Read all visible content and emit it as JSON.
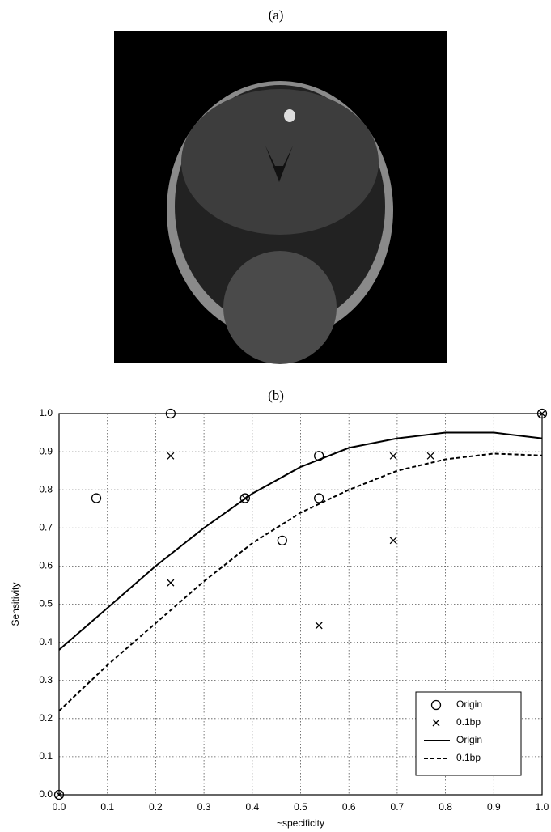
{
  "image_panel": {
    "label": "(a)"
  },
  "chart_data": {
    "type": "scatter",
    "title": "(b)",
    "x_label": "~specificity",
    "y_label": "Sensitivity",
    "xlim": [
      0,
      1
    ],
    "ylim": [
      0,
      1
    ],
    "xticks": [
      {
        "value": 0,
        "label": "0.0"
      },
      0.1,
      0.2,
      0.3,
      0.4,
      0.5,
      0.6,
      0.7,
      0.8,
      0.9,
      {
        "value": 1,
        "label": "1.0"
      }
    ],
    "yticks": [
      {
        "value": 0,
        "label": "0.0"
      },
      0.1,
      0.2,
      0.3,
      0.4,
      0.5,
      0.6,
      0.7,
      0.8,
      0.9,
      {
        "value": 1,
        "label": "1.0"
      }
    ],
    "grid": true,
    "legend": "lower right",
    "series": [
      {
        "name": "Origin",
        "kind": "marker",
        "marker": "circle",
        "color": "#000000",
        "x": [
          0,
          0.077,
          0.231,
          0.385,
          0.462,
          0.538,
          0.538,
          1
        ],
        "values": [
          0,
          0.778,
          1,
          0.778,
          0.667,
          0.889,
          0.778,
          1
        ]
      },
      {
        "name": "0.1bp",
        "kind": "marker",
        "marker": "cross",
        "color": "#000000",
        "x": [
          0,
          0.231,
          0.231,
          0.385,
          0.538,
          0.692,
          0.692,
          0.769,
          1
        ],
        "values": [
          0,
          0.889,
          0.556,
          0.778,
          0.444,
          0.889,
          0.667,
          0.889,
          1
        ]
      },
      {
        "name": "Origin",
        "kind": "line",
        "dashed": false,
        "color": "#000000",
        "x": [
          0,
          0.1,
          0.2,
          0.3,
          0.4,
          0.5,
          0.6,
          0.7,
          0.8,
          0.9,
          1
        ],
        "values": [
          0.38,
          0.49,
          0.6,
          0.7,
          0.79,
          0.86,
          0.91,
          0.935,
          0.95,
          0.95,
          0.935
        ]
      },
      {
        "name": "0.1bp",
        "kind": "line",
        "dashed": true,
        "color": "#000000",
        "x": [
          0,
          0.1,
          0.2,
          0.3,
          0.4,
          0.5,
          0.6,
          0.7,
          0.8,
          0.9,
          1
        ],
        "values": [
          0.22,
          0.34,
          0.45,
          0.56,
          0.66,
          0.74,
          0.8,
          0.85,
          0.88,
          0.895,
          0.89
        ]
      }
    ]
  }
}
